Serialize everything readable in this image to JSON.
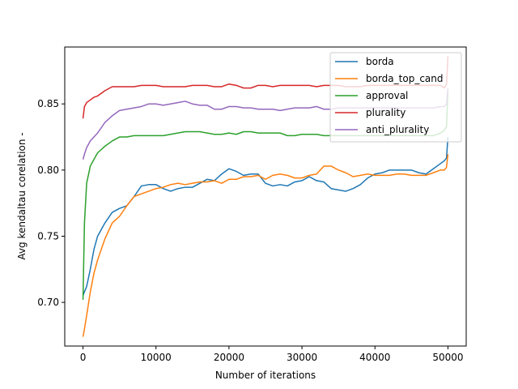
{
  "chart_data": {
    "type": "line",
    "title": "",
    "xlabel": "Number of iterations",
    "ylabel": "Avg kendaltau corelation -",
    "xlim": [
      -2500,
      52500
    ],
    "ylim": [
      0.667,
      0.893
    ],
    "xticks": [
      0,
      10000,
      20000,
      30000,
      40000,
      50000
    ],
    "xtick_labels": [
      "0",
      "10000",
      "20000",
      "30000",
      "40000",
      "50000"
    ],
    "yticks": [
      0.7,
      0.75,
      0.8,
      0.85
    ],
    "ytick_labels": [
      "0.70",
      "0.75",
      "0.80",
      "0.85"
    ],
    "grid": false,
    "legend_position": "top-right",
    "series": [
      {
        "name": "borda",
        "color": "#1f77b4",
        "x": [
          0,
          200,
          500,
          1000,
          1500,
          2000,
          3000,
          4000,
          5000,
          6000,
          7000,
          8000,
          9000,
          10000,
          11000,
          12000,
          13000,
          14000,
          15000,
          16000,
          17000,
          18000,
          19000,
          20000,
          21000,
          22000,
          23000,
          24000,
          25000,
          26000,
          27000,
          28000,
          29000,
          30000,
          31000,
          32000,
          33000,
          34000,
          35000,
          36000,
          37000,
          38000,
          39000,
          40000,
          41000,
          42000,
          43000,
          44000,
          45000,
          46000,
          47000,
          48000,
          49000,
          49500,
          49800,
          50000
        ],
        "y": [
          0.705,
          0.708,
          0.712,
          0.725,
          0.74,
          0.75,
          0.76,
          0.768,
          0.771,
          0.773,
          0.78,
          0.788,
          0.789,
          0.789,
          0.786,
          0.784,
          0.786,
          0.787,
          0.787,
          0.79,
          0.793,
          0.792,
          0.797,
          0.801,
          0.799,
          0.796,
          0.797,
          0.797,
          0.79,
          0.788,
          0.789,
          0.788,
          0.791,
          0.792,
          0.795,
          0.792,
          0.791,
          0.786,
          0.785,
          0.784,
          0.786,
          0.789,
          0.794,
          0.797,
          0.798,
          0.8,
          0.8,
          0.8,
          0.8,
          0.798,
          0.797,
          0.801,
          0.805,
          0.807,
          0.809,
          0.825
        ]
      },
      {
        "name": "borda_top_cand",
        "color": "#ff7f0e",
        "x": [
          0,
          200,
          500,
          1000,
          1500,
          2000,
          3000,
          4000,
          5000,
          6000,
          7000,
          8000,
          9000,
          10000,
          11000,
          12000,
          13000,
          14000,
          15000,
          16000,
          17000,
          18000,
          19000,
          20000,
          21000,
          22000,
          23000,
          24000,
          25000,
          26000,
          27000,
          28000,
          29000,
          30000,
          31000,
          32000,
          33000,
          34000,
          35000,
          36000,
          37000,
          38000,
          39000,
          40000,
          41000,
          42000,
          43000,
          44000,
          45000,
          46000,
          47000,
          48000,
          49000,
          49500,
          49800,
          50000
        ],
        "y": [
          0.674,
          0.68,
          0.69,
          0.708,
          0.722,
          0.732,
          0.748,
          0.76,
          0.765,
          0.773,
          0.78,
          0.782,
          0.784,
          0.786,
          0.787,
          0.789,
          0.79,
          0.789,
          0.79,
          0.791,
          0.791,
          0.792,
          0.79,
          0.793,
          0.793,
          0.795,
          0.795,
          0.796,
          0.793,
          0.796,
          0.797,
          0.796,
          0.794,
          0.794,
          0.796,
          0.797,
          0.803,
          0.803,
          0.8,
          0.798,
          0.795,
          0.796,
          0.797,
          0.796,
          0.796,
          0.796,
          0.797,
          0.797,
          0.796,
          0.796,
          0.796,
          0.798,
          0.8,
          0.8,
          0.802,
          0.812
        ]
      },
      {
        "name": "approval",
        "color": "#2ca02c",
        "x": [
          0,
          200,
          500,
          1000,
          1500,
          2000,
          3000,
          4000,
          5000,
          6000,
          7000,
          8000,
          9000,
          10000,
          11000,
          12000,
          13000,
          14000,
          15000,
          16000,
          17000,
          18000,
          19000,
          20000,
          21000,
          22000,
          23000,
          24000,
          25000,
          26000,
          27000,
          28000,
          29000,
          30000,
          31000,
          32000,
          33000,
          34000,
          35000,
          36000,
          37000,
          38000,
          39000,
          40000,
          41000,
          42000,
          43000,
          44000,
          45000,
          46000,
          47000,
          48000,
          49000,
          49500,
          49800,
          50000
        ],
        "y": [
          0.702,
          0.76,
          0.79,
          0.803,
          0.808,
          0.813,
          0.818,
          0.822,
          0.825,
          0.825,
          0.826,
          0.826,
          0.826,
          0.826,
          0.826,
          0.827,
          0.828,
          0.829,
          0.829,
          0.829,
          0.828,
          0.827,
          0.827,
          0.828,
          0.827,
          0.829,
          0.829,
          0.828,
          0.828,
          0.828,
          0.828,
          0.826,
          0.826,
          0.827,
          0.827,
          0.827,
          0.826,
          0.826,
          0.826,
          0.826,
          0.826,
          0.826,
          0.826,
          0.826,
          0.826,
          0.826,
          0.826,
          0.826,
          0.826,
          0.826,
          0.826,
          0.826,
          0.828,
          0.83,
          0.833,
          0.86
        ]
      },
      {
        "name": "plurality",
        "color": "#d62728",
        "x": [
          0,
          200,
          500,
          1000,
          1500,
          2000,
          3000,
          4000,
          5000,
          6000,
          7000,
          8000,
          9000,
          10000,
          11000,
          12000,
          13000,
          14000,
          15000,
          16000,
          17000,
          18000,
          19000,
          20000,
          21000,
          22000,
          23000,
          24000,
          25000,
          26000,
          27000,
          28000,
          29000,
          30000,
          31000,
          32000,
          33000,
          34000,
          35000,
          36000,
          37000,
          38000,
          39000,
          40000,
          41000,
          42000,
          43000,
          44000,
          45000,
          46000,
          47000,
          48000,
          49000,
          49500,
          49800,
          50000
        ],
        "y": [
          0.839,
          0.848,
          0.851,
          0.853,
          0.855,
          0.856,
          0.86,
          0.863,
          0.863,
          0.863,
          0.863,
          0.864,
          0.864,
          0.864,
          0.863,
          0.863,
          0.863,
          0.863,
          0.864,
          0.864,
          0.864,
          0.863,
          0.863,
          0.865,
          0.864,
          0.862,
          0.862,
          0.864,
          0.864,
          0.863,
          0.864,
          0.864,
          0.864,
          0.864,
          0.864,
          0.863,
          0.864,
          0.864,
          0.864,
          0.863,
          0.863,
          0.863,
          0.864,
          0.864,
          0.864,
          0.864,
          0.864,
          0.864,
          0.864,
          0.864,
          0.864,
          0.864,
          0.864,
          0.862,
          0.865,
          0.886
        ]
      },
      {
        "name": "anti_plurality",
        "color": "#9467bd",
        "x": [
          0,
          200,
          500,
          1000,
          1500,
          2000,
          3000,
          4000,
          5000,
          6000,
          7000,
          8000,
          9000,
          10000,
          11000,
          12000,
          13000,
          14000,
          15000,
          16000,
          17000,
          18000,
          19000,
          20000,
          21000,
          22000,
          23000,
          24000,
          25000,
          26000,
          27000,
          28000,
          29000,
          30000,
          31000,
          32000,
          33000,
          34000,
          35000,
          36000,
          37000,
          38000,
          39000,
          40000,
          41000,
          42000,
          43000,
          44000,
          45000,
          46000,
          47000,
          48000,
          49000,
          49500,
          49800,
          50000
        ],
        "y": [
          0.808,
          0.812,
          0.817,
          0.822,
          0.825,
          0.828,
          0.836,
          0.841,
          0.845,
          0.846,
          0.847,
          0.848,
          0.85,
          0.85,
          0.849,
          0.85,
          0.851,
          0.852,
          0.85,
          0.849,
          0.849,
          0.846,
          0.846,
          0.848,
          0.848,
          0.847,
          0.847,
          0.846,
          0.846,
          0.846,
          0.845,
          0.846,
          0.847,
          0.847,
          0.847,
          0.848,
          0.846,
          0.846,
          0.847,
          0.847,
          0.847,
          0.847,
          0.847,
          0.847,
          0.847,
          0.847,
          0.847,
          0.847,
          0.847,
          0.847,
          0.847,
          0.847,
          0.848,
          0.848,
          0.85,
          0.862
        ]
      }
    ]
  }
}
